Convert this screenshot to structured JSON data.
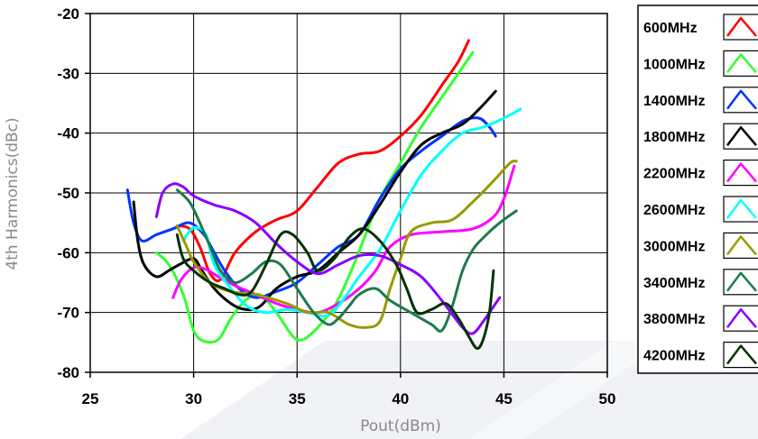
{
  "chart_data": {
    "type": "line",
    "title": "",
    "xlabel": "Pout(dBm)",
    "ylabel": "4th Harmonics(dBc)",
    "xlim": [
      25,
      50
    ],
    "ylim": [
      -80,
      -20
    ],
    "xticks": [
      25,
      30,
      35,
      40,
      45,
      50
    ],
    "yticks": [
      -20,
      -30,
      -40,
      -50,
      -60,
      -70,
      -80
    ],
    "x_tick_labels": [
      "25",
      "30",
      "35",
      "40",
      "45",
      "50"
    ],
    "y_tick_labels": [
      "-20",
      "-30",
      "-40",
      "-50",
      "-60",
      "-70",
      "-80"
    ],
    "grid": true,
    "legend_position": "right",
    "series": [
      {
        "name": "600MHz",
        "color": "#ff0000",
        "points": [
          [
            29.2,
            -55.5
          ],
          [
            29.8,
            -56
          ],
          [
            30.3,
            -59
          ],
          [
            30.8,
            -63.5
          ],
          [
            31.3,
            -64.5
          ],
          [
            32,
            -60
          ],
          [
            33,
            -56.5
          ],
          [
            34,
            -54.5
          ],
          [
            35,
            -53
          ],
          [
            36,
            -49
          ],
          [
            37,
            -45
          ],
          [
            38,
            -43.5
          ],
          [
            39,
            -43
          ],
          [
            40,
            -40.5
          ],
          [
            41,
            -37
          ],
          [
            42,
            -32
          ],
          [
            42.8,
            -28
          ],
          [
            43.3,
            -24.5
          ]
        ]
      },
      {
        "name": "1000MHz",
        "color": "#33ff33",
        "points": [
          [
            28.2,
            -60
          ],
          [
            28.8,
            -62
          ],
          [
            29.5,
            -67
          ],
          [
            30,
            -73
          ],
          [
            30.5,
            -74.8
          ],
          [
            31.2,
            -74.5
          ],
          [
            31.8,
            -71
          ],
          [
            32.5,
            -68
          ],
          [
            33.2,
            -67
          ],
          [
            34,
            -70
          ],
          [
            34.8,
            -74
          ],
          [
            35.3,
            -74.5
          ],
          [
            36,
            -72.5
          ],
          [
            36.8,
            -69
          ],
          [
            37.5,
            -64
          ],
          [
            38.2,
            -58
          ],
          [
            39,
            -51
          ],
          [
            40,
            -45
          ],
          [
            41,
            -39
          ],
          [
            42,
            -34
          ],
          [
            42.8,
            -30
          ],
          [
            43.5,
            -26.5
          ]
        ]
      },
      {
        "name": "1400MHz",
        "color": "#0033ff",
        "points": [
          [
            26.8,
            -49.5
          ],
          [
            27.1,
            -55
          ],
          [
            27.5,
            -58
          ],
          [
            28.2,
            -57
          ],
          [
            29,
            -56
          ],
          [
            29.8,
            -55
          ],
          [
            30.5,
            -57
          ],
          [
            31,
            -60
          ],
          [
            31.5,
            -63
          ],
          [
            32.2,
            -66
          ],
          [
            33,
            -67.5
          ],
          [
            34,
            -66.5
          ],
          [
            35,
            -65
          ],
          [
            36,
            -62
          ],
          [
            37,
            -59
          ],
          [
            38,
            -57
          ],
          [
            39,
            -51
          ],
          [
            40,
            -46
          ],
          [
            41,
            -43
          ],
          [
            42,
            -40.5
          ],
          [
            43,
            -38
          ],
          [
            43.8,
            -37.5
          ],
          [
            44.3,
            -39
          ],
          [
            44.6,
            -40.5
          ]
        ]
      },
      {
        "name": "1800MHz",
        "color": "#000000",
        "points": [
          [
            27.1,
            -51.5
          ],
          [
            27.3,
            -58
          ],
          [
            27.6,
            -62
          ],
          [
            28.2,
            -64
          ],
          [
            28.8,
            -63
          ],
          [
            29.3,
            -62
          ],
          [
            30,
            -61
          ],
          [
            30.4,
            -63
          ],
          [
            31,
            -66
          ],
          [
            31.8,
            -68.5
          ],
          [
            32.5,
            -69.5
          ],
          [
            33.2,
            -69
          ],
          [
            34,
            -66
          ],
          [
            35,
            -64
          ],
          [
            36,
            -63
          ],
          [
            37,
            -60
          ],
          [
            38,
            -57
          ],
          [
            39,
            -52
          ],
          [
            40,
            -46.5
          ],
          [
            41,
            -42
          ],
          [
            42,
            -40
          ],
          [
            43,
            -38.5
          ],
          [
            43.8,
            -36
          ],
          [
            44.6,
            -33
          ]
        ]
      },
      {
        "name": "2200MHz",
        "color": "#ff00ff",
        "points": [
          [
            29,
            -67.5
          ],
          [
            29.4,
            -64.5
          ],
          [
            30,
            -62.5
          ],
          [
            30.6,
            -62.8
          ],
          [
            31.2,
            -64
          ],
          [
            32,
            -65.5
          ],
          [
            33,
            -67
          ],
          [
            34,
            -68.5
          ],
          [
            35,
            -69.5
          ],
          [
            36,
            -70
          ],
          [
            37,
            -68.5
          ],
          [
            38,
            -66
          ],
          [
            38.8,
            -63
          ],
          [
            39.5,
            -59
          ],
          [
            40.5,
            -57
          ],
          [
            42,
            -56.5
          ],
          [
            43.5,
            -56
          ],
          [
            44.5,
            -54
          ],
          [
            45,
            -51
          ],
          [
            45.5,
            -45.5
          ]
        ]
      },
      {
        "name": "2600MHz",
        "color": "#00ffff",
        "points": [
          [
            29.5,
            -58
          ],
          [
            30,
            -55.8
          ],
          [
            30.6,
            -57
          ],
          [
            31,
            -62
          ],
          [
            31.8,
            -66
          ],
          [
            32.6,
            -69
          ],
          [
            33.5,
            -70
          ],
          [
            34.5,
            -69.5
          ],
          [
            35.5,
            -70
          ],
          [
            36.5,
            -70.5
          ],
          [
            37.2,
            -68
          ],
          [
            38,
            -64
          ],
          [
            39,
            -59.5
          ],
          [
            40,
            -53
          ],
          [
            41,
            -47
          ],
          [
            42,
            -43
          ],
          [
            43,
            -40
          ],
          [
            44,
            -39
          ],
          [
            45,
            -37.5
          ],
          [
            45.8,
            -36
          ]
        ]
      },
      {
        "name": "3000MHz",
        "color": "#999900",
        "points": [
          [
            29.2,
            -55.5
          ],
          [
            29.6,
            -58.5
          ],
          [
            30,
            -61.5
          ],
          [
            30.8,
            -65
          ],
          [
            31.8,
            -66.5
          ],
          [
            33,
            -67
          ],
          [
            34.5,
            -68.5
          ],
          [
            35.5,
            -70
          ],
          [
            36.5,
            -70
          ],
          [
            37.5,
            -72
          ],
          [
            38.3,
            -72.5
          ],
          [
            39,
            -71.5
          ],
          [
            39.5,
            -66
          ],
          [
            40,
            -61
          ],
          [
            40.5,
            -56.5
          ],
          [
            41.5,
            -55
          ],
          [
            42.5,
            -54.5
          ],
          [
            43.5,
            -51.5
          ],
          [
            44.5,
            -48
          ],
          [
            45.3,
            -45
          ],
          [
            45.6,
            -44.7
          ]
        ]
      },
      {
        "name": "3400MHz",
        "color": "#1e7a50",
        "points": [
          [
            29.2,
            -49.5
          ],
          [
            29.8,
            -51.5
          ],
          [
            30.3,
            -55
          ],
          [
            30.8,
            -59
          ],
          [
            31.3,
            -63
          ],
          [
            32,
            -65
          ],
          [
            32.8,
            -63.5
          ],
          [
            33.5,
            -61.5
          ],
          [
            34.2,
            -62
          ],
          [
            35,
            -66
          ],
          [
            35.8,
            -70
          ],
          [
            36.5,
            -72
          ],
          [
            37,
            -71
          ],
          [
            37.5,
            -69
          ],
          [
            38,
            -67
          ],
          [
            38.8,
            -66
          ],
          [
            39.5,
            -68
          ],
          [
            40.5,
            -70
          ],
          [
            41.5,
            -72
          ],
          [
            42,
            -73
          ],
          [
            42.5,
            -69
          ],
          [
            43,
            -63
          ],
          [
            43.5,
            -59.5
          ],
          [
            44,
            -57.5
          ],
          [
            44.8,
            -55
          ],
          [
            45.6,
            -53
          ]
        ]
      },
      {
        "name": "3800MHz",
        "color": "#8800ff",
        "points": [
          [
            28.2,
            -54
          ],
          [
            28.5,
            -50
          ],
          [
            29,
            -48.5
          ],
          [
            29.5,
            -49
          ],
          [
            30,
            -50.5
          ],
          [
            31,
            -52
          ],
          [
            32,
            -53
          ],
          [
            33,
            -55
          ],
          [
            34,
            -58.5
          ],
          [
            35,
            -61.5
          ],
          [
            36,
            -63.5
          ],
          [
            37,
            -62
          ],
          [
            38,
            -60.5
          ],
          [
            39,
            -60.5
          ],
          [
            40,
            -62
          ],
          [
            41,
            -64
          ],
          [
            42,
            -68
          ],
          [
            43,
            -72.5
          ],
          [
            43.5,
            -73.5
          ],
          [
            44,
            -71.5
          ],
          [
            44.5,
            -69
          ],
          [
            44.8,
            -67.5
          ]
        ]
      },
      {
        "name": "4200MHz",
        "color": "#003300",
        "points": [
          [
            29.2,
            -57
          ],
          [
            29.5,
            -61
          ],
          [
            30,
            -63
          ],
          [
            30.8,
            -65
          ],
          [
            31.5,
            -66
          ],
          [
            32.2,
            -67
          ],
          [
            32.8,
            -66.5
          ],
          [
            33.5,
            -62
          ],
          [
            34.2,
            -57
          ],
          [
            34.8,
            -57
          ],
          [
            35.5,
            -60
          ],
          [
            36,
            -63
          ],
          [
            36.8,
            -61
          ],
          [
            37.5,
            -57.5
          ],
          [
            38.2,
            -56
          ],
          [
            39,
            -58
          ],
          [
            39.8,
            -62
          ],
          [
            40.3,
            -66
          ],
          [
            40.8,
            -70
          ],
          [
            41.5,
            -69.5
          ],
          [
            42.2,
            -68.5
          ],
          [
            42.8,
            -71
          ],
          [
            43.3,
            -74
          ],
          [
            43.7,
            -76
          ],
          [
            44,
            -74.5
          ],
          [
            44.3,
            -70
          ],
          [
            44.5,
            -63
          ]
        ]
      }
    ]
  }
}
